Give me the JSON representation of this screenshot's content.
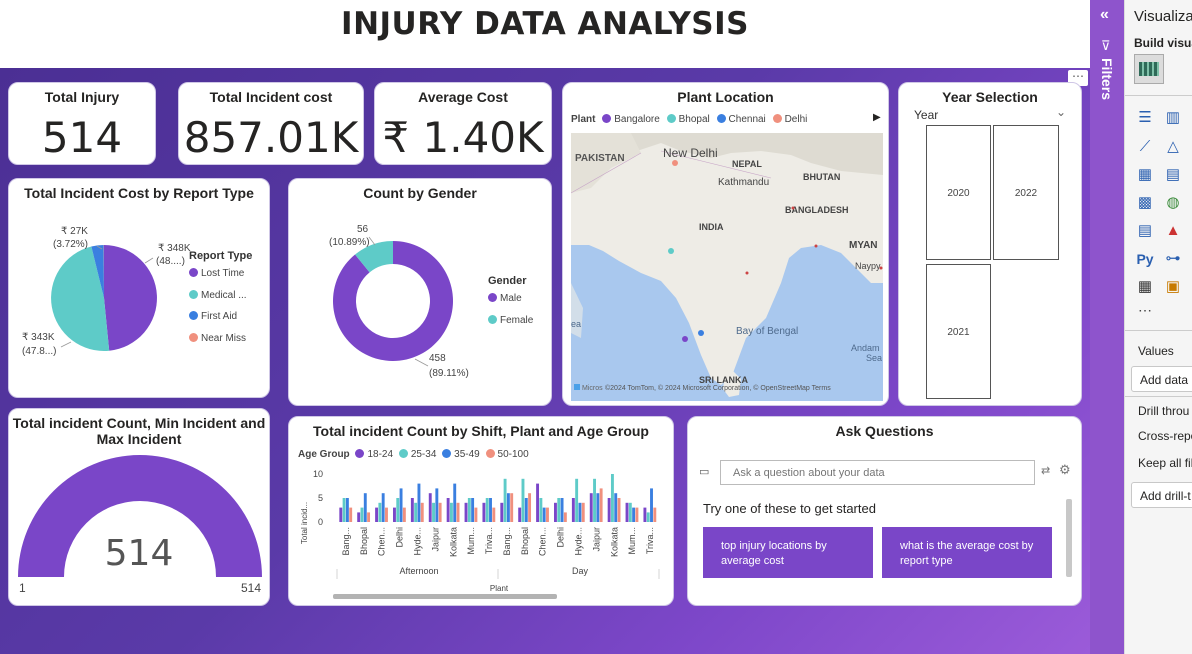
{
  "header": {
    "title": "INJURY DATA ANALYSIS"
  },
  "kpis": [
    {
      "title": "Total Injury",
      "value": "514"
    },
    {
      "title": "Total Incident cost",
      "value": "857.01K"
    },
    {
      "title": "Average Cost",
      "value": "₹ 1.40K"
    }
  ],
  "report_type_pie": {
    "title": "Total Incident Cost by Report Type",
    "legend_title": "Report Type",
    "legend": [
      "Lost Time",
      "Medical ...",
      "First Aid",
      "Near Miss"
    ],
    "labels": {
      "first_aid_value": "₹ 27K",
      "first_aid_pct": "(3.72%)",
      "lost_time_value": "₹ 348K",
      "lost_time_pct": "(48....)",
      "medical_value": "₹ 343K",
      "medical_pct": "(47.8...)"
    }
  },
  "gender_donut": {
    "title": "Count by Gender",
    "legend_title": "Gender",
    "legend": [
      "Male",
      "Female"
    ],
    "labels": {
      "female_count": "56",
      "female_pct": "(10.89%)",
      "male_count": "458",
      "male_pct": "(89.11%)"
    }
  },
  "plant_map": {
    "title": "Plant Location",
    "legend_title": "Plant",
    "legend": [
      "Bangalore",
      "Bhopal",
      "Chennai",
      "Delhi"
    ],
    "places": [
      "PAKISTAN",
      "New Delhi",
      "NEPAL",
      "Kathmandu",
      "BHUTAN",
      "INDIA",
      "BANGLADESH",
      "MYAN",
      "Naypy",
      "Bay of Bengal",
      "Andam",
      "Sea",
      "SRI LANKA",
      "ea"
    ],
    "attribution": "©2024 TomTom, © 2024 Microsoft Corporation, © OpenStreetMap  Terms",
    "logo": "Micros"
  },
  "year_slicer": {
    "title": "Year Selection",
    "field": "Year",
    "years": [
      "2020",
      "2022",
      "2021"
    ]
  },
  "gauge": {
    "title_line1": "Total incident Count, Min Incident and",
    "title_line2": "Max Incident",
    "value": "514",
    "min": "1",
    "max": "514"
  },
  "shift_chart": {
    "title": "Total incident Count by Shift, Plant and Age Group",
    "legend_title": "Age Group",
    "series_names": [
      "18-24",
      "25-34",
      "35-49",
      "50-100"
    ],
    "ylabel": "Total incid...",
    "xlabel": "Plant",
    "yticks": [
      "10",
      "5",
      "0"
    ],
    "groups": [
      "Afternoon",
      "Day"
    ],
    "plants": [
      "Bang...",
      "Bhopal",
      "Chen...",
      "Delhi",
      "Hyde...",
      "Jaipur",
      "Kolkata",
      "Mum...",
      "Triva..."
    ]
  },
  "qa": {
    "title": "Ask Questions",
    "placeholder": "Ask a question about your data",
    "prompt": "Try one of these to get started",
    "suggestions": [
      "top injury locations by average cost",
      "what is the average cost by report type"
    ]
  },
  "filters_pane": {
    "label": "Filters"
  },
  "viz_pane": {
    "title": "Visualiza",
    "subtitle": "Build visua",
    "values_label": "Values",
    "add_data": "Add data",
    "drill_label": "Drill throu",
    "cross_report": "Cross-repo",
    "keep_all": "Keep all fil",
    "add_drill": "Add drill-t",
    "more": "⋯"
  },
  "colors": {
    "purple": "#7a46c8",
    "teal": "#5ecbc8",
    "blue": "#3a7fe0",
    "salmon": "#f0907e",
    "accent": "#8e54cc"
  },
  "chart_data": [
    {
      "type": "pie",
      "title": "Total Incident Cost by Report Type",
      "categories": [
        "Lost Time",
        "Medical ...",
        "First Aid",
        "Near Miss"
      ],
      "values": [
        348,
        343,
        27,
        0.5
      ],
      "percent": [
        48.0,
        47.8,
        3.72,
        0.07
      ]
    },
    {
      "type": "pie",
      "title": "Count by Gender",
      "categories": [
        "Male",
        "Female"
      ],
      "values": [
        458,
        56
      ],
      "percent": [
        89.11,
        10.89
      ]
    },
    {
      "type": "bar",
      "title": "Total incident Count by Shift, Plant and Age Group",
      "xlabel": "Plant",
      "ylabel": "Total incid...",
      "ylim": [
        0,
        10
      ],
      "categories": [
        "Afternoon Bang...",
        "Afternoon Bhopal",
        "Afternoon Chen...",
        "Afternoon Delhi",
        "Afternoon Hyde...",
        "Afternoon Jaipur",
        "Afternoon Kolkata",
        "Afternoon Mum...",
        "Afternoon Triva...",
        "Day Bang...",
        "Day Bhopal",
        "Day Chen...",
        "Day Delhi",
        "Day Hyde...",
        "Day Jaipur",
        "Day Kolkata",
        "Day Mum...",
        "Day Triva..."
      ],
      "series": [
        {
          "name": "18-24",
          "values": [
            3,
            2,
            3,
            3,
            5,
            6,
            5,
            4,
            4,
            4,
            3,
            8,
            4,
            5,
            6,
            5,
            4,
            3
          ]
        },
        {
          "name": "25-34",
          "values": [
            5,
            3,
            4,
            5,
            4,
            4,
            4,
            5,
            5,
            9,
            9,
            5,
            5,
            9,
            9,
            10,
            4,
            2
          ]
        },
        {
          "name": "35-49",
          "values": [
            5,
            6,
            6,
            7,
            8,
            7,
            8,
            5,
            5,
            6,
            5,
            3,
            5,
            4,
            6,
            6,
            3,
            7
          ]
        },
        {
          "name": "50-100",
          "values": [
            3,
            2,
            3,
            3,
            4,
            4,
            4,
            3,
            3,
            6,
            6,
            3,
            2,
            4,
            7,
            5,
            3,
            3
          ]
        }
      ]
    },
    {
      "type": "gauge",
      "title": "Total incident Count, Min Incident and Max Incident",
      "value": 514,
      "min": 1,
      "max": 514
    }
  ]
}
